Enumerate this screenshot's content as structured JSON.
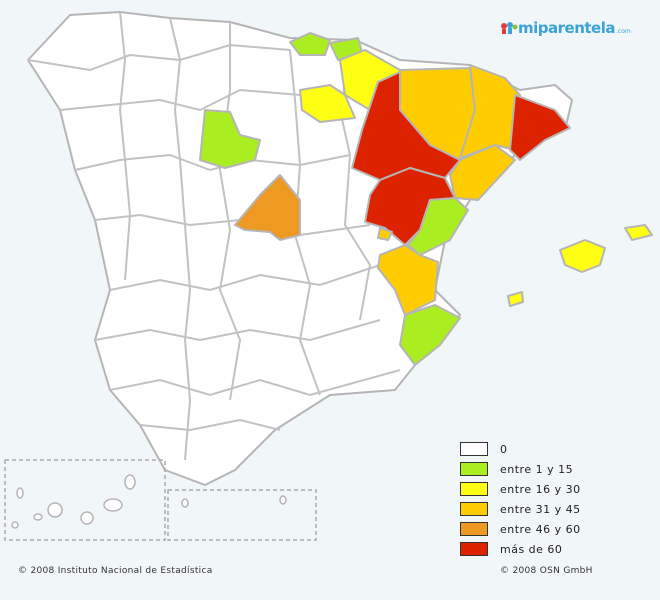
{
  "logo": {
    "text": "miparentela",
    "tld": ".com"
  },
  "legend": [
    {
      "label": "0",
      "color": "#ffffff"
    },
    {
      "label": "entre 1 y 15",
      "color": "#aaee22"
    },
    {
      "label": "entre 16 y 30",
      "color": "#ffff11"
    },
    {
      "label": "entre 31 y 45",
      "color": "#ffcc00"
    },
    {
      "label": "entre 46 y 60",
      "color": "#ee9922"
    },
    {
      "label": "más de 60",
      "color": "#dd2200"
    }
  ],
  "footer": {
    "left": "© 2008 Instituto Nacional de Estadística",
    "right": "© 2008 OSN GmbH"
  }
}
